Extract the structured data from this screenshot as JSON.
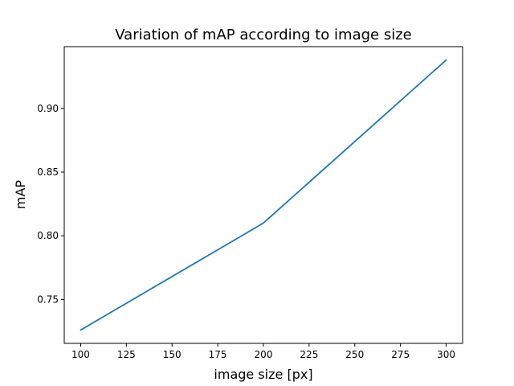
{
  "chart_data": {
    "type": "line",
    "title": "Variation of mAP according to image size",
    "xlabel": "image size [px]",
    "ylabel": "mAP",
    "x": [
      100,
      200,
      300
    ],
    "series": [
      {
        "values": [
          0.726,
          0.81,
          0.938
        ],
        "color": "#1f77b4"
      }
    ],
    "xlim": [
      91,
      309
    ],
    "ylim": [
      0.7155,
      0.9485
    ],
    "xticks": [
      100,
      125,
      150,
      175,
      200,
      225,
      250,
      275,
      300
    ],
    "xtick_labels": [
      "100",
      "125",
      "150",
      "175",
      "200",
      "225",
      "250",
      "275",
      "300"
    ],
    "yticks": [
      0.75,
      0.8,
      0.85,
      0.9
    ],
    "ytick_labels": [
      "0.75",
      "0.80",
      "0.85",
      "0.90"
    ],
    "grid": false,
    "legend": "none"
  }
}
